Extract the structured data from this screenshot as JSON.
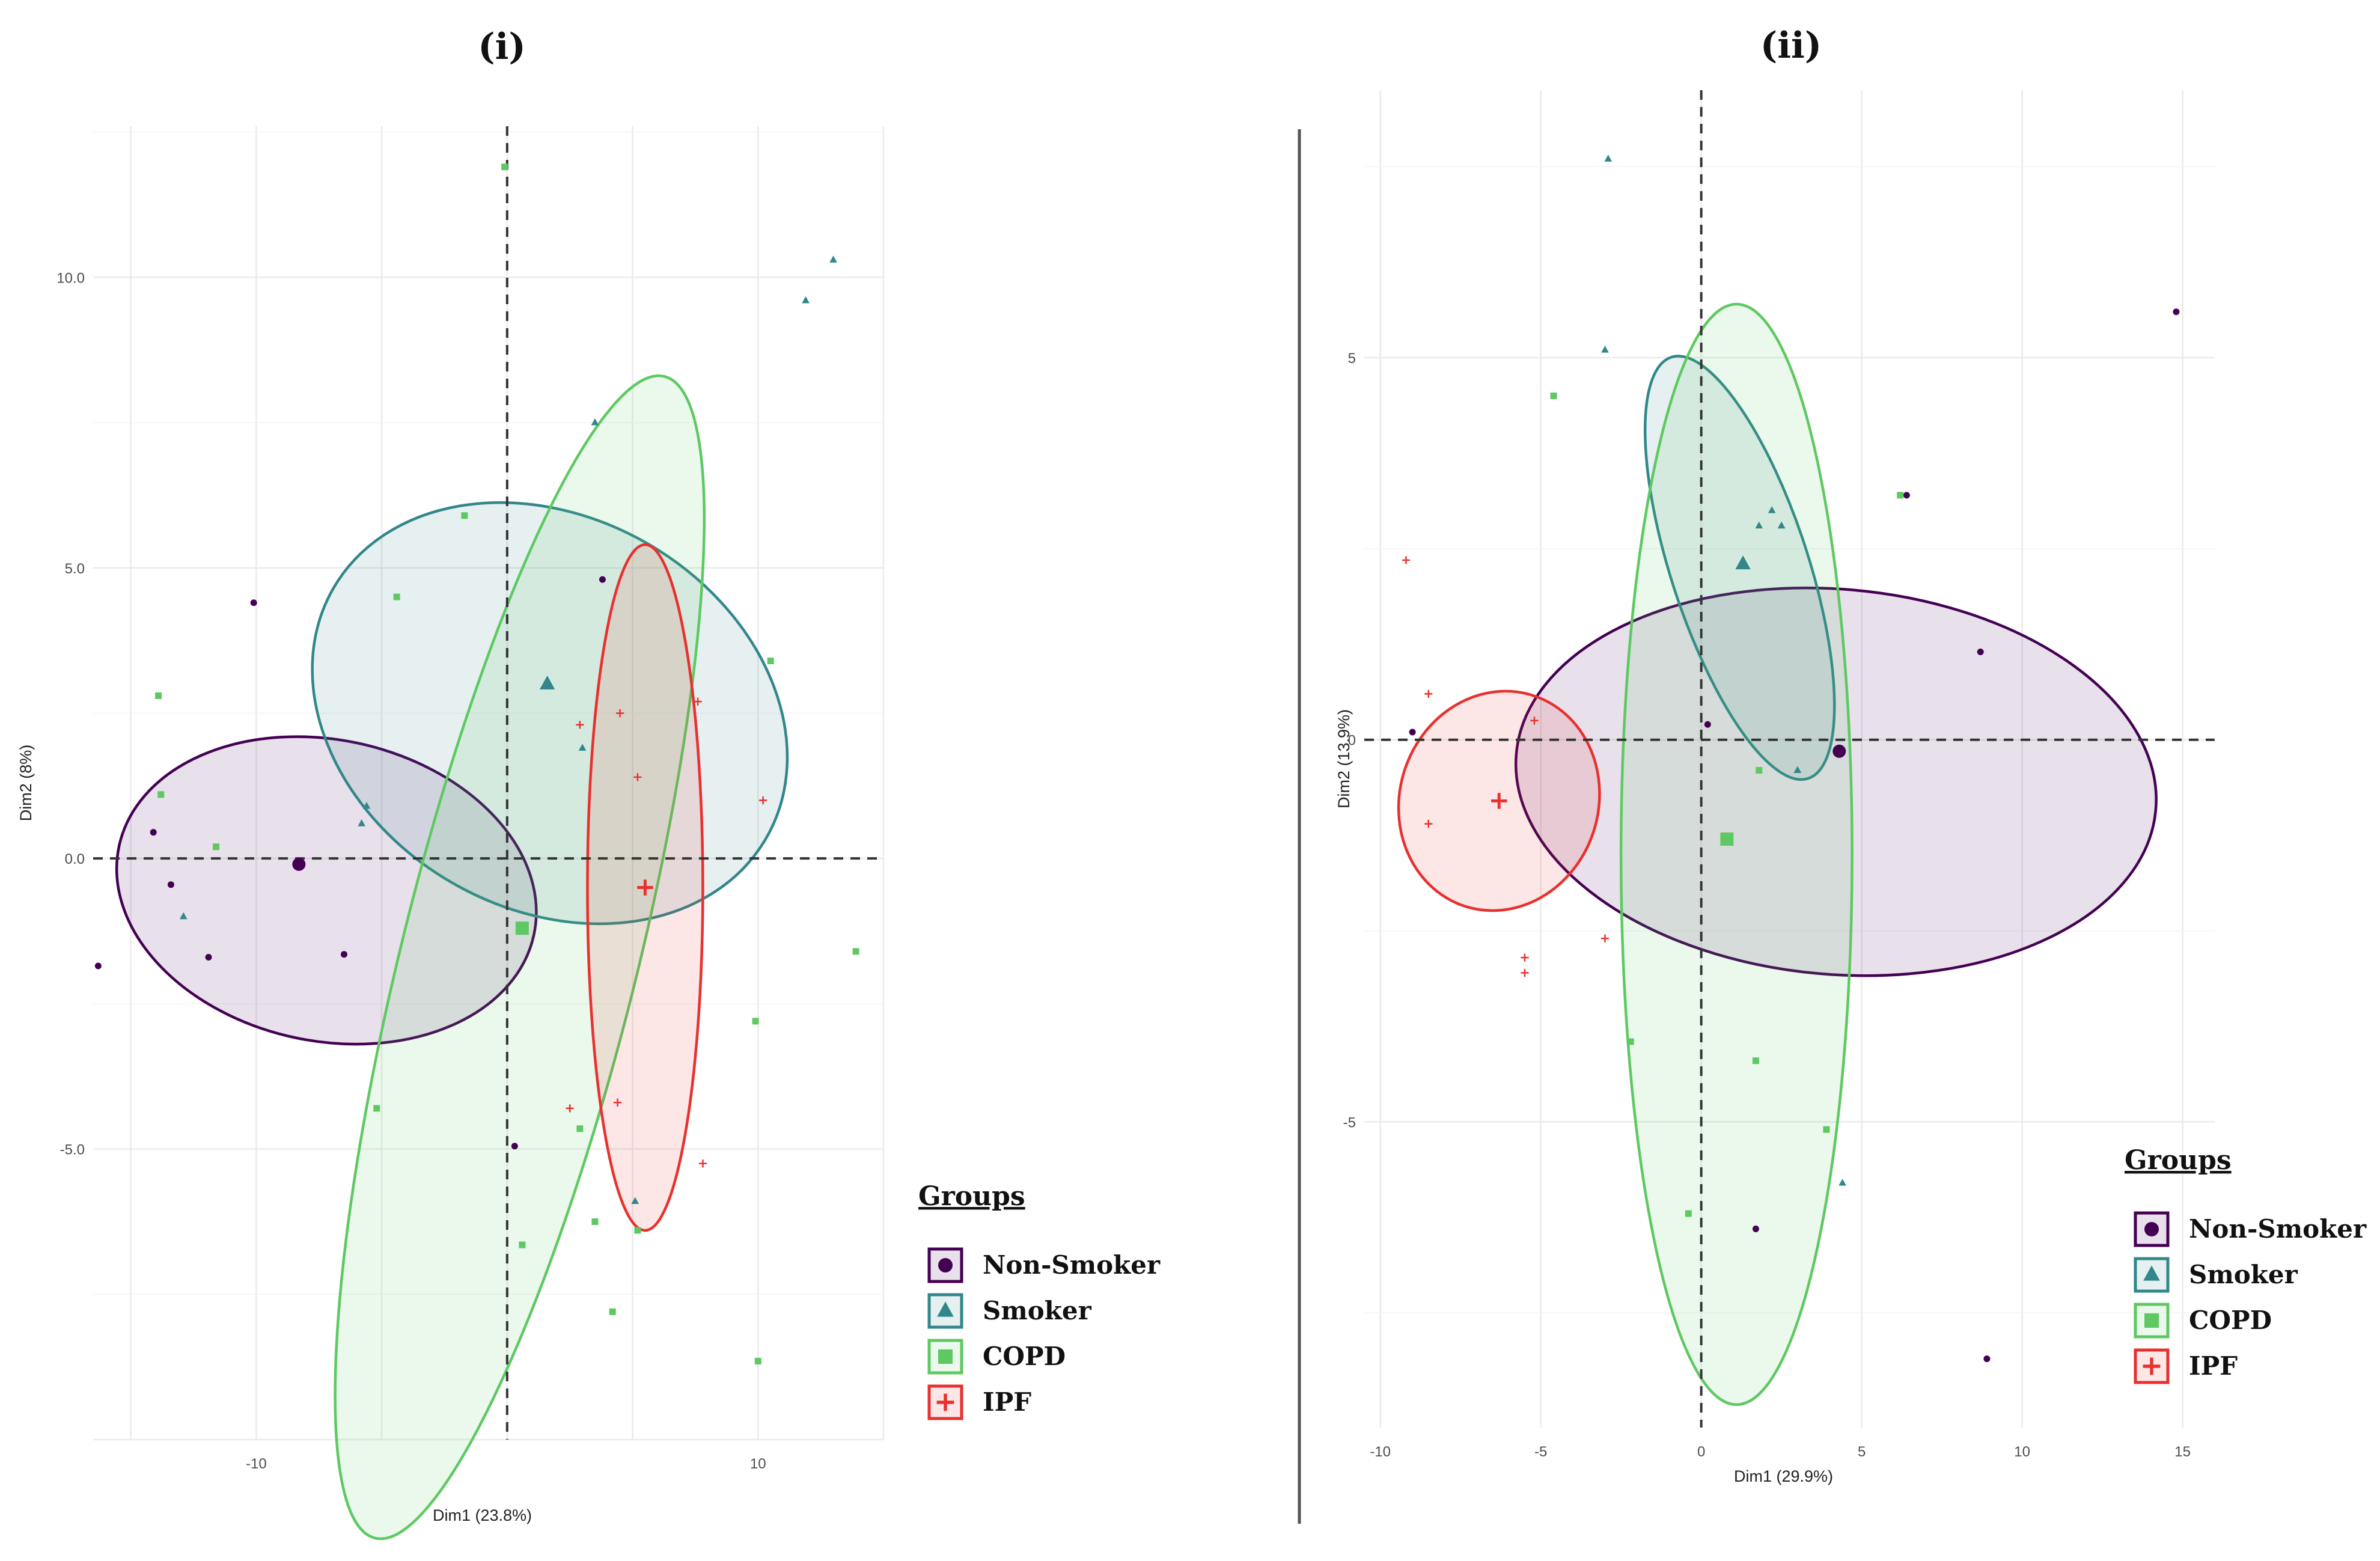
{
  "chart_data": [
    {
      "type": "scatter",
      "title": "(i)",
      "xlabel": "Dim1 (23.8%)",
      "ylabel": "Dim2 (8%)",
      "xlim": [
        -16.5,
        15
      ],
      "ylim": [
        -10,
        12.6
      ],
      "xticks": [
        -10,
        10
      ],
      "xtick_labels": [
        "-10",
        "10"
      ],
      "yticks": [
        10,
        5,
        0,
        -5
      ],
      "ytick_labels": [
        "10.0",
        "5.0",
        "0.0",
        "-5.0"
      ],
      "grid": true,
      "legend_title": "Groups",
      "legend_position": "right",
      "series": [
        {
          "name": "Non-Smoker",
          "color": "#440154",
          "marker": "circle",
          "points": [
            [
              -10.1,
              4.4
            ],
            [
              -14.1,
              0.45
            ],
            [
              -13.4,
              -0.45
            ],
            [
              -11.9,
              -1.7
            ],
            [
              -6.5,
              -1.65
            ],
            [
              -16.3,
              -1.85
            ],
            [
              3.8,
              4.8
            ],
            [
              0.3,
              -4.95
            ]
          ],
          "centroid": [
            -8.3,
            -0.1
          ],
          "ellipse": {
            "cx": -7.2,
            "cy": -0.55,
            "rx": 6.0,
            "ry": 3.65,
            "angle_deg": 78
          }
        },
        {
          "name": "Smoker",
          "color": "#31878A",
          "marker": "triangle",
          "points": [
            [
              13.0,
              10.3
            ],
            [
              11.9,
              9.6
            ],
            [
              3.5,
              7.5
            ],
            [
              -5.6,
              0.9
            ],
            [
              -5.8,
              0.6
            ],
            [
              -12.9,
              -1.0
            ],
            [
              3.0,
              1.9
            ],
            [
              5.1,
              -5.9
            ]
          ],
          "centroid": [
            1.6,
            3.0
          ],
          "ellipse": {
            "cx": 1.7,
            "cy": 2.5,
            "rx": 7.8,
            "ry": 4.3,
            "angle_deg": 60
          }
        },
        {
          "name": "COPD",
          "color": "#5EC962",
          "marker": "square",
          "points": [
            [
              -0.1,
              11.9
            ],
            [
              -1.7,
              5.9
            ],
            [
              -4.4,
              4.5
            ],
            [
              -13.9,
              2.8
            ],
            [
              -13.8,
              1.1
            ],
            [
              -11.6,
              0.2
            ],
            [
              10.5,
              3.4
            ],
            [
              13.9,
              -1.6
            ],
            [
              9.9,
              -2.8
            ],
            [
              -5.2,
              -4.3
            ],
            [
              2.9,
              -4.65
            ],
            [
              3.5,
              -6.25
            ],
            [
              5.2,
              -6.4
            ],
            [
              0.6,
              -6.65
            ],
            [
              4.2,
              -7.8
            ],
            [
              10.0,
              -8.65
            ]
          ],
          "centroid": [
            0.6,
            -1.2
          ],
          "ellipse": {
            "cx": 0.5,
            "cy": -1.7,
            "rx": 4.7,
            "ry": 10.3,
            "angle_deg": 166
          }
        },
        {
          "name": "IPF",
          "color": "#E8312F",
          "marker": "plus",
          "points": [
            [
              2.9,
              2.3
            ],
            [
              4.5,
              2.5
            ],
            [
              7.6,
              2.7
            ],
            [
              10.2,
              1.0
            ],
            [
              5.2,
              1.4
            ],
            [
              2.5,
              -4.3
            ],
            [
              4.4,
              -4.2
            ],
            [
              7.8,
              -5.25
            ]
          ],
          "centroid": [
            5.5,
            -0.5
          ],
          "ellipse": {
            "cx": 5.5,
            "cy": -0.5,
            "rx": 2.3,
            "ry": 5.9,
            "angle_deg": 0
          }
        }
      ]
    },
    {
      "type": "scatter",
      "title": "(ii)",
      "xlabel": "Dim1 (29.9%)",
      "ylabel": "Dim2 (13.9%)",
      "xlim": [
        -10.5,
        16
      ],
      "ylim": [
        -9,
        8.5
      ],
      "xticks": [
        -10,
        -5,
        0,
        5,
        10,
        15
      ],
      "xtick_labels": [
        "-10",
        "-5",
        "0",
        "5",
        "10",
        "15"
      ],
      "yticks": [
        5,
        0,
        -5
      ],
      "ytick_labels": [
        "5",
        "0",
        "-5"
      ],
      "grid": true,
      "legend_title": "Groups",
      "legend_position": "right",
      "series": [
        {
          "name": "Non-Smoker",
          "color": "#440154",
          "marker": "circle",
          "points": [
            [
              14.8,
              5.6
            ],
            [
              6.4,
              3.2
            ],
            [
              8.7,
              1.15
            ],
            [
              -9.0,
              0.1
            ],
            [
              0.2,
              0.2
            ],
            [
              1.7,
              -6.4
            ],
            [
              8.9,
              -8.1
            ]
          ],
          "centroid": [
            4.3,
            -0.15
          ],
          "ellipse": {
            "cx": 4.2,
            "cy": -0.55,
            "rx": 6.0,
            "ry": 4.2,
            "angle_deg": 85
          }
        },
        {
          "name": "Smoker",
          "color": "#31878A",
          "marker": "triangle",
          "points": [
            [
              -2.9,
              7.6
            ],
            [
              -3.0,
              5.1
            ],
            [
              2.2,
              3.0
            ],
            [
              1.8,
              2.8
            ],
            [
              2.5,
              2.8
            ],
            [
              2.5,
              2.8
            ],
            [
              3.0,
              -0.4
            ],
            [
              4.4,
              -5.8
            ]
          ],
          "centroid": [
            1.3,
            2.3
          ],
          "ellipse": {
            "cx": 1.2,
            "cy": 2.25,
            "rx": 6.9,
            "ry": 0.9,
            "angle_deg": 108
          }
        },
        {
          "name": "COPD",
          "color": "#5EC962",
          "marker": "square",
          "points": [
            [
              -4.6,
              4.5
            ],
            [
              6.2,
              3.2
            ],
            [
              -2.2,
              -3.95
            ],
            [
              3.9,
              -5.1
            ],
            [
              1.7,
              -4.2
            ],
            [
              -0.4,
              -6.2
            ],
            [
              1.8,
              -0.4
            ]
          ],
          "centroid": [
            0.8,
            -1.3
          ],
          "ellipse": {
            "cx": 1.1,
            "cy": -1.5,
            "rx": 3.6,
            "ry": 7.2,
            "angle_deg": 180
          }
        },
        {
          "name": "IPF",
          "color": "#E8312F",
          "marker": "plus",
          "points": [
            [
              -9.2,
              2.35
            ],
            [
              -8.5,
              0.6
            ],
            [
              -5.2,
              0.25
            ],
            [
              -8.5,
              -1.1
            ],
            [
              -3.0,
              -2.6
            ],
            [
              -5.5,
              -2.85
            ],
            [
              -5.5,
              -3.05
            ]
          ],
          "centroid": [
            -6.3,
            -0.8
          ],
          "ellipse": {
            "cx": -6.3,
            "cy": -0.8,
            "rx": 3.45,
            "ry": 1.3,
            "angle_deg": 72
          }
        }
      ]
    }
  ]
}
